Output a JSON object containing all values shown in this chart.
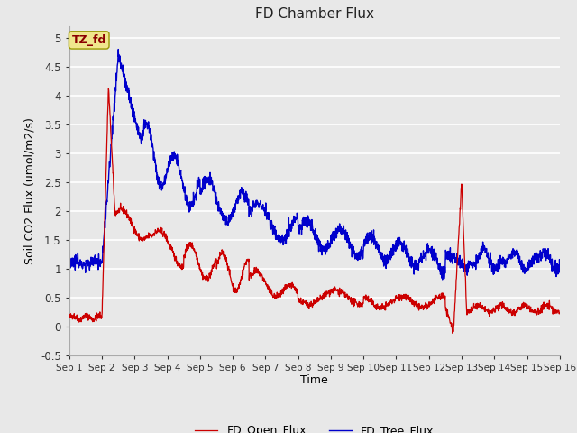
{
  "title": "FD Chamber Flux",
  "xlabel": "Time",
  "ylabel": "Soil CO2 Flux (umol/m2/s)",
  "ylim": [
    -0.5,
    5.2
  ],
  "yticks": [
    -0.5,
    0.0,
    0.5,
    1.0,
    1.5,
    2.0,
    2.5,
    3.0,
    3.5,
    4.0,
    4.5,
    5.0
  ],
  "xtick_labels": [
    "Sep 1",
    "Sep 2",
    "Sep 3",
    "Sep 4",
    "Sep 5",
    "Sep 6",
    "Sep 7",
    "Sep 8",
    "Sep 9",
    "Sep 10",
    "Sep 11",
    "Sep 12",
    "Sep 13",
    "Sep 14",
    "Sep 15",
    "Sep 16"
  ],
  "open_color": "#cc0000",
  "tree_color": "#0000cc",
  "legend_open": "FD_Open_Flux",
  "legend_tree": "FD_Tree_Flux",
  "tz_label": "TZ_fd",
  "bg_color": "#e8e8e8",
  "grid_color": "white",
  "n_days": 15,
  "n_points": 2000
}
